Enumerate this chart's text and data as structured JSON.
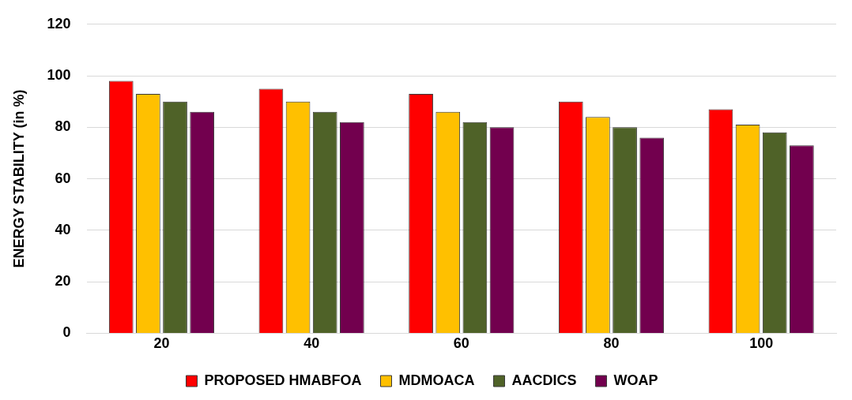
{
  "chart_data": {
    "type": "bar",
    "ylabel": "ENERGY STABILITY (in %)",
    "categories": [
      "20",
      "40",
      "60",
      "80",
      "100"
    ],
    "series": [
      {
        "name": "PROPOSED HMABFOA",
        "color": "#ff0000",
        "values": [
          98,
          95,
          93,
          90,
          87
        ]
      },
      {
        "name": "MDMOACA",
        "color": "#ffc000",
        "values": [
          93,
          90,
          86,
          84,
          81
        ]
      },
      {
        "name": "AACDICS",
        "color": "#4f6228",
        "values": [
          90,
          86,
          82,
          80,
          78
        ]
      },
      {
        "name": "WOAP",
        "color": "#72004e",
        "values": [
          86,
          82,
          80,
          76,
          73
        ]
      }
    ],
    "ylim": [
      0,
      120
    ],
    "yticks": [
      0,
      20,
      40,
      60,
      80,
      100,
      120
    ],
    "grid": "y",
    "legend": "bottom"
  }
}
